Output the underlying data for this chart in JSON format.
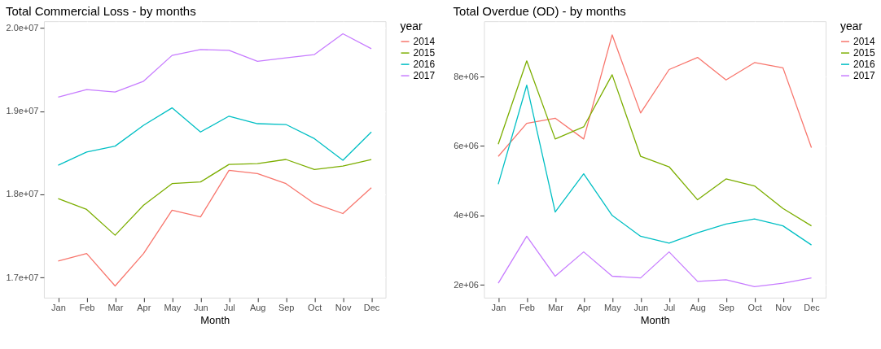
{
  "chart_data": [
    {
      "type": "line",
      "title": "Total Commercial Loss - by months",
      "xlabel": "Month",
      "legend_title": "year",
      "legend": "right",
      "grid": true,
      "categories": [
        "Jan",
        "Feb",
        "Mar",
        "Apr",
        "May",
        "Jun",
        "Jul",
        "Aug",
        "Sep",
        "Oct",
        "Nov",
        "Dec"
      ],
      "ylim": [
        16760000,
        20080000
      ],
      "yticks": [
        {
          "value": 17000000,
          "label": "1.7e+07"
        },
        {
          "value": 18000000,
          "label": "1.8e+07"
        },
        {
          "value": 19000000,
          "label": "1.9e+07"
        },
        {
          "value": 20000000,
          "label": "2.0e+07"
        }
      ],
      "series": [
        {
          "name": "2014",
          "color": "#f8766d",
          "values": [
            17200000,
            17290000,
            16900000,
            17290000,
            17810000,
            17730000,
            18290000,
            18250000,
            18130000,
            17890000,
            17770000,
            18080000
          ]
        },
        {
          "name": "2015",
          "color": "#7cae00",
          "values": [
            17950000,
            17820000,
            17510000,
            17870000,
            18130000,
            18150000,
            18360000,
            18370000,
            18420000,
            18300000,
            18340000,
            18420000
          ]
        },
        {
          "name": "2016",
          "color": "#00bfc4",
          "values": [
            18350000,
            18510000,
            18580000,
            18830000,
            19040000,
            18750000,
            18940000,
            18850000,
            18840000,
            18670000,
            18410000,
            18750000
          ]
        },
        {
          "name": "2017",
          "color": "#c77cff",
          "values": [
            19170000,
            19260000,
            19230000,
            19360000,
            19670000,
            19740000,
            19730000,
            19600000,
            19640000,
            19680000,
            19930000,
            19750000
          ]
        }
      ]
    },
    {
      "type": "line",
      "title": "Total Overdue (OD) - by months",
      "xlabel": "Month",
      "legend_title": "year",
      "legend": "right",
      "grid": true,
      "categories": [
        "Jan",
        "Feb",
        "Mar",
        "Apr",
        "May",
        "Jun",
        "Jul",
        "Aug",
        "Sep",
        "Oct",
        "Nov",
        "Dec"
      ],
      "ylim": [
        1633000,
        9590000
      ],
      "yticks": [
        {
          "value": 2000000,
          "label": "2e+06"
        },
        {
          "value": 4000000,
          "label": "4e+06"
        },
        {
          "value": 6000000,
          "label": "6e+06"
        },
        {
          "value": 8000000,
          "label": "8e+06"
        }
      ],
      "series": [
        {
          "name": "2014",
          "color": "#f8766d",
          "values": [
            5700000,
            6650000,
            6800000,
            6200000,
            9200000,
            6950000,
            8200000,
            8550000,
            7900000,
            8400000,
            8250000,
            5950000
          ]
        },
        {
          "name": "2015",
          "color": "#7cae00",
          "values": [
            6050000,
            8450000,
            6200000,
            6550000,
            8050000,
            5700000,
            5400000,
            4450000,
            5050000,
            4850000,
            4200000,
            3700000
          ]
        },
        {
          "name": "2016",
          "color": "#00bfc4",
          "values": [
            4900000,
            7750000,
            4100000,
            5200000,
            4000000,
            3400000,
            3200000,
            3500000,
            3750000,
            3900000,
            3700000,
            3150000
          ]
        },
        {
          "name": "2017",
          "color": "#c77cff",
          "values": [
            2050000,
            3400000,
            2250000,
            2950000,
            2250000,
            2200000,
            2950000,
            2100000,
            2150000,
            1950000,
            2050000,
            2200000
          ]
        }
      ]
    }
  ]
}
